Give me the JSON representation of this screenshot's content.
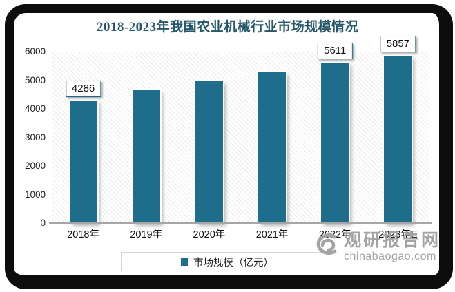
{
  "title": "2018-2023年我国农业机械行业市场规模情况",
  "colors": {
    "bar": "#1f6d8c",
    "title_text": "#27576a",
    "label_box_border": "#1a6a87",
    "axis_line": "#a6a6a6",
    "watermark_gray": "#a3a3a3"
  },
  "chart_data": {
    "type": "bar",
    "title": "2018-2023年我国农业机械行业市场规模情况",
    "categories": [
      "2018年",
      "2019年",
      "2020年",
      "2021年",
      "2022年",
      "2023年E"
    ],
    "series": [
      {
        "name": "市场规模（亿元）",
        "values": [
          4286,
          4680,
          4960,
          5280,
          5611,
          5857
        ]
      }
    ],
    "labeled_points": {
      "0": "4286",
      "4": "5611",
      "5": "5857"
    },
    "xlabel": "",
    "ylabel": "",
    "ylim": [
      0,
      6000
    ],
    "yticks": [
      0,
      1000,
      2000,
      3000,
      4000,
      5000,
      6000
    ],
    "grid": false,
    "legend_position": "bottom",
    "legend": [
      "市场规模（亿元）"
    ]
  },
  "legend": {
    "label": "市场规模（亿元）"
  },
  "watermark": {
    "site_name": "观研报告网",
    "domain": "chinabaogao.com"
  }
}
